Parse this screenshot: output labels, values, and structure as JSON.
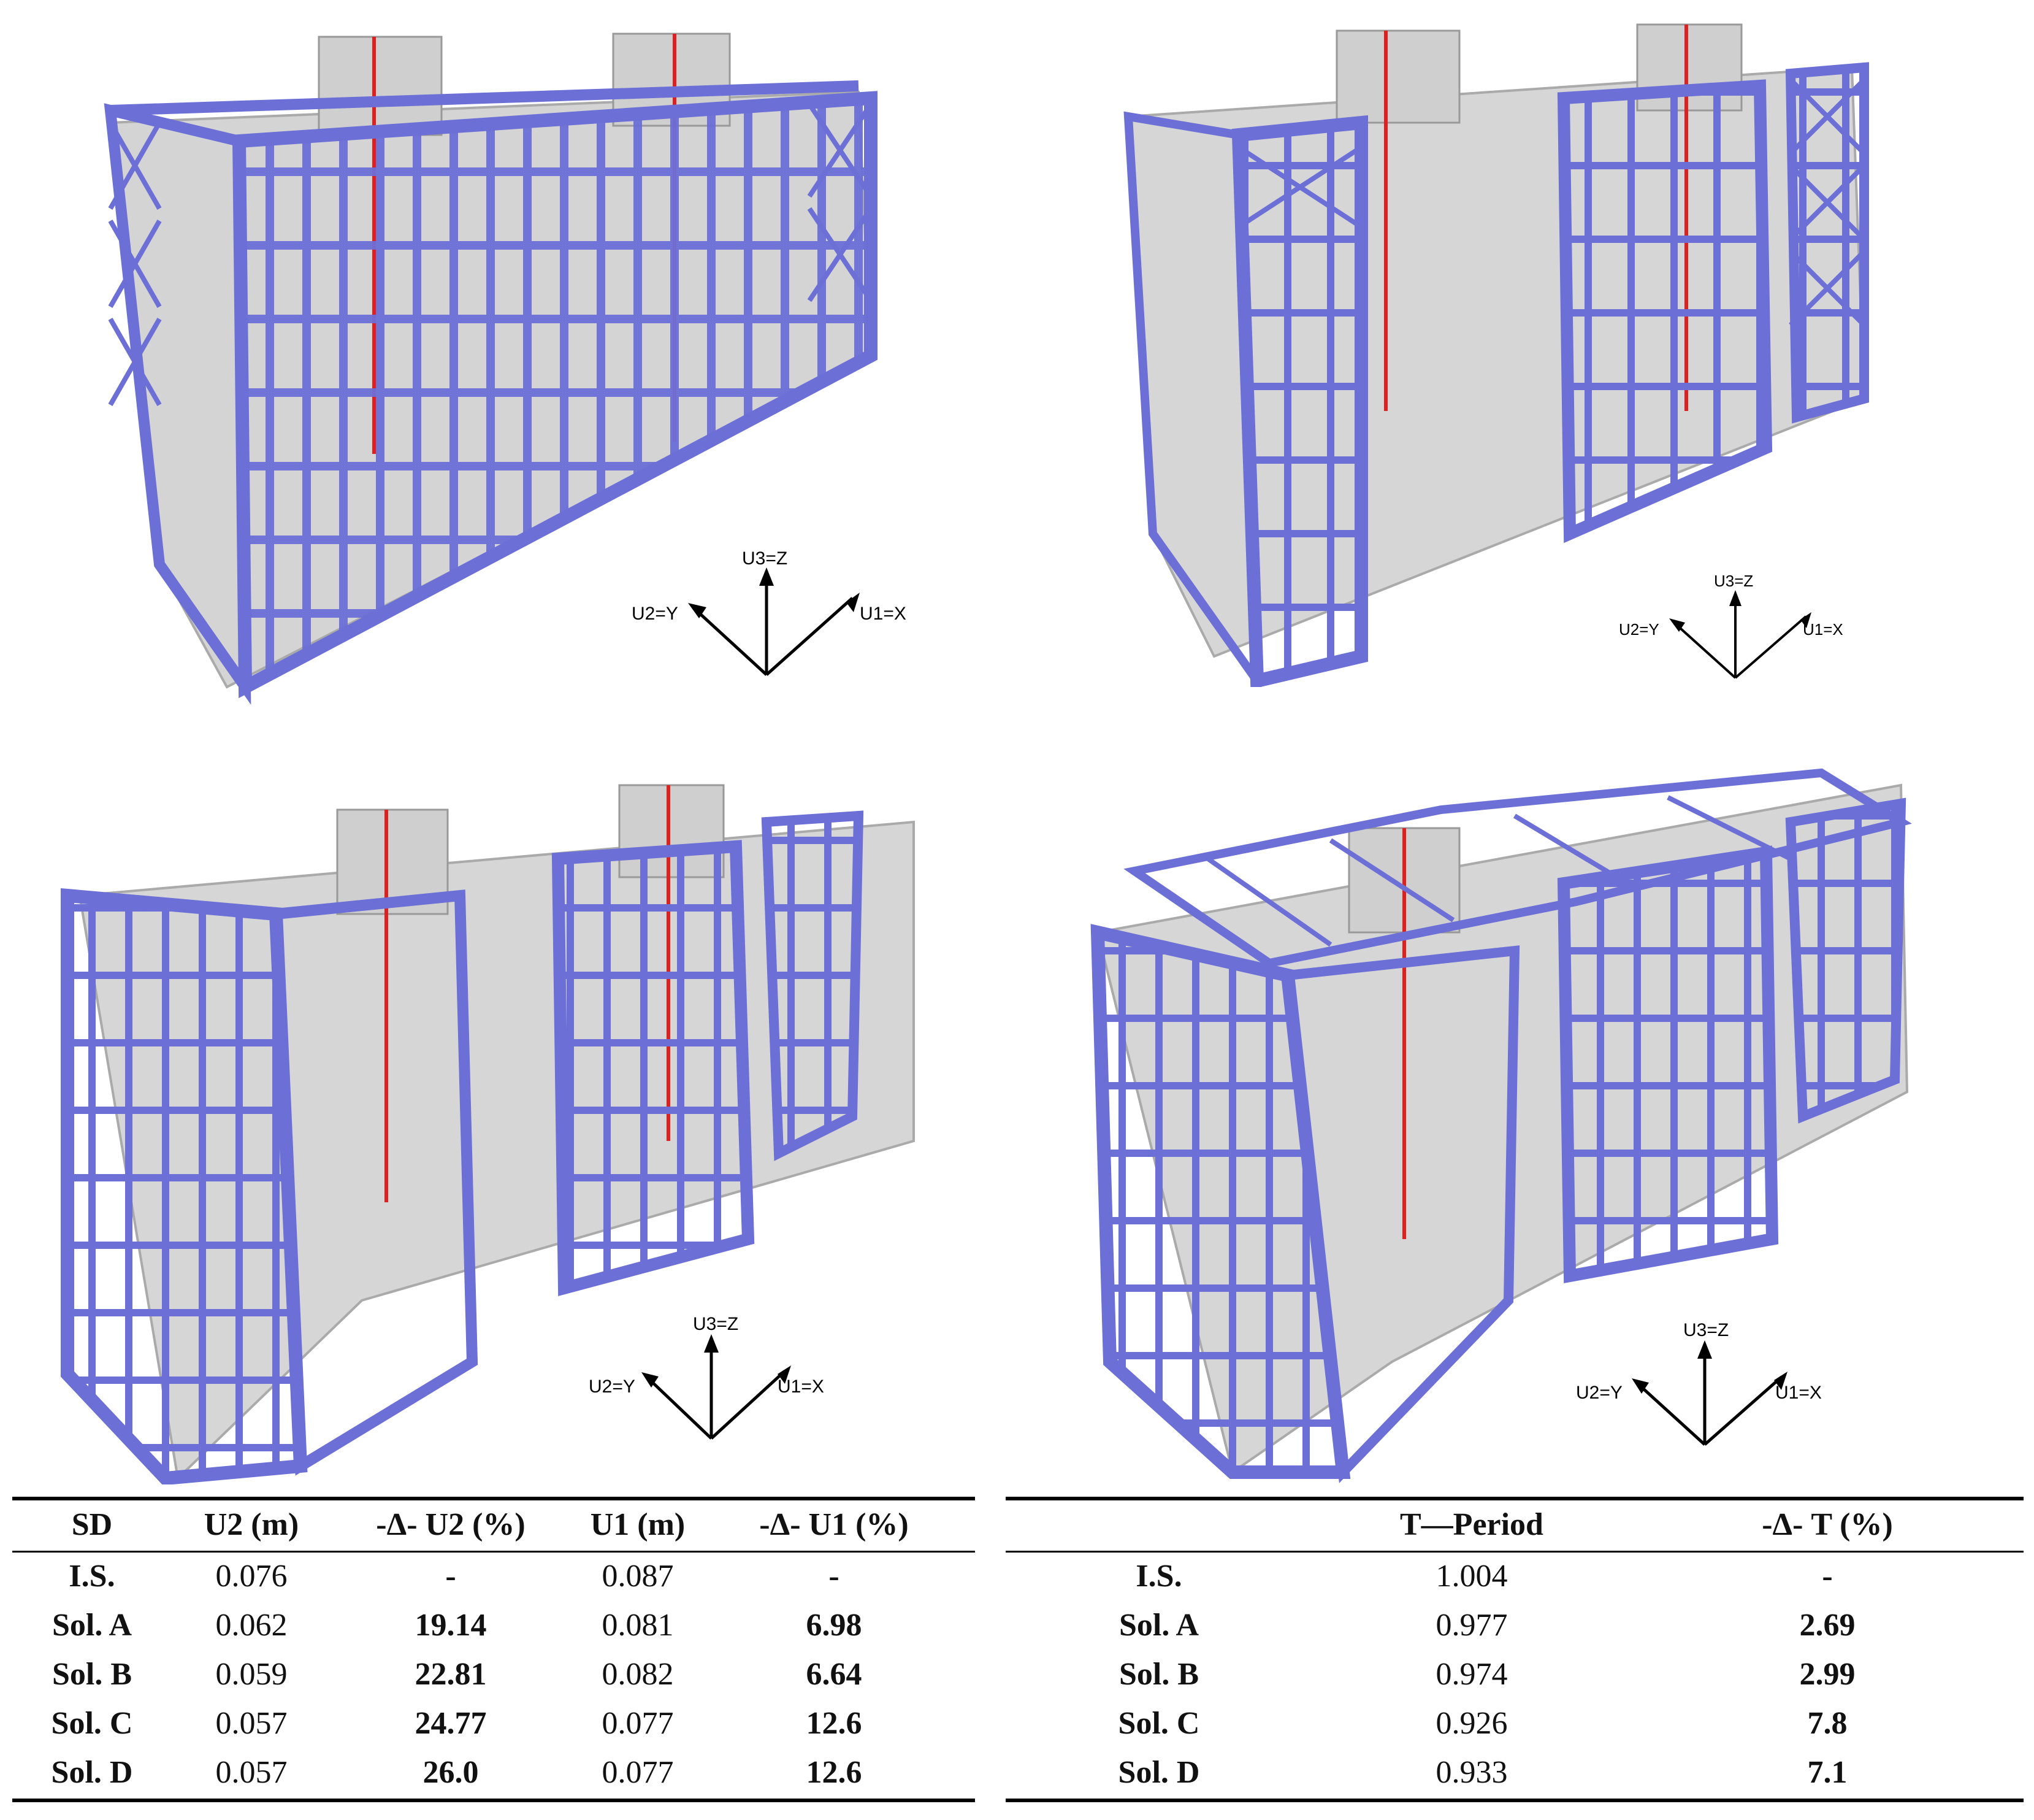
{
  "axes": {
    "z": "U3=Z",
    "y": "U2=Y",
    "x": "U1=X"
  },
  "table_left": {
    "headers": [
      "SD",
      "U2 (m)",
      "-Δ- U2 (%)",
      "U1 (m)",
      "-Δ- U1 (%)"
    ],
    "rows": [
      [
        "I.S.",
        "0.076",
        "-",
        "0.087",
        "-"
      ],
      [
        "Sol. A",
        "0.062",
        "19.14",
        "0.081",
        "6.98"
      ],
      [
        "Sol. B",
        "0.059",
        "22.81",
        "0.082",
        "6.64"
      ],
      [
        "Sol. C",
        "0.057",
        "24.77",
        "0.077",
        "12.6"
      ],
      [
        "Sol. D",
        "0.057",
        "26.0",
        "0.077",
        "12.6"
      ]
    ]
  },
  "table_right": {
    "headers": [
      "",
      "T—Period",
      "-Δ- T (%)"
    ],
    "rows": [
      [
        "I.S.",
        "1.004",
        "-"
      ],
      [
        "Sol. A",
        "0.977",
        "2.69"
      ],
      [
        "Sol. B",
        "0.974",
        "2.99"
      ],
      [
        "Sol. C",
        "0.926",
        "7.8"
      ],
      [
        "Sol. D",
        "0.933",
        "7.1"
      ]
    ]
  },
  "colors": {
    "steel": "#6b6fd6",
    "concrete": "#c4c4c4",
    "core_highlight": "#e0201e",
    "support": "#2ecc71"
  }
}
